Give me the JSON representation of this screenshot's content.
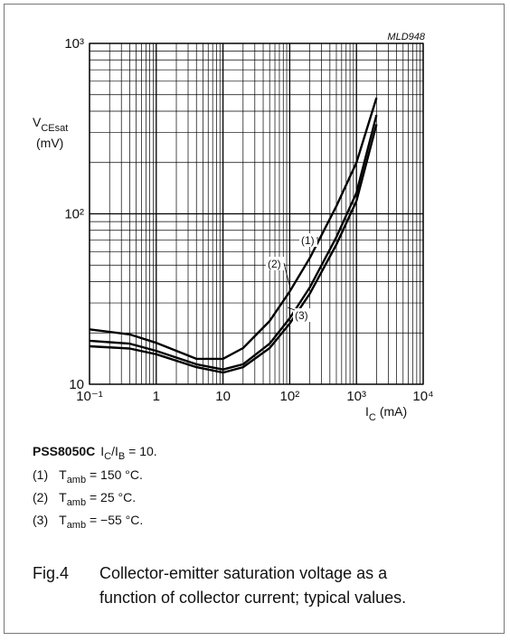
{
  "chart_data": {
    "type": "line",
    "annotation": "MLD948",
    "ylabel": {
      "symbol": "V",
      "subscript": "CEsat",
      "unit": "(mV)"
    },
    "xlabel": {
      "symbol": "I",
      "subscript": "C",
      "unit": "(mA)"
    },
    "log_x": true,
    "log_y": true,
    "grid": true,
    "xlim": [
      0.1,
      10000
    ],
    "xticks": [
      {
        "value": 0.1,
        "label": "10⁻¹"
      },
      1,
      10,
      {
        "value": 100,
        "label": "10²"
      },
      {
        "value": 1000,
        "label": "10³"
      },
      {
        "value": 10000,
        "label": "10⁴"
      }
    ],
    "ylim": [
      10,
      1000
    ],
    "yticks": [
      10,
      {
        "value": 100,
        "label": "10²"
      },
      {
        "value": 1000,
        "label": "10³"
      }
    ],
    "x": [
      0.1,
      0.4,
      1,
      4,
      10,
      20,
      50,
      100,
      200,
      500,
      1000,
      2000
    ],
    "series": [
      {
        "name": "(1)",
        "color": "#000000",
        "values": [
          21,
          19.6,
          17.5,
          14.1,
          14.1,
          16.3,
          23.5,
          35,
          55,
          111,
          200,
          480
        ]
      },
      {
        "name": "(2)",
        "color": "#000000",
        "values": [
          18,
          17.3,
          15.7,
          13.1,
          12.2,
          13.1,
          17.3,
          24.4,
          37,
          73,
          133,
          380
        ]
      },
      {
        "name": "(3)",
        "color": "#000000",
        "values": [
          16.7,
          16.2,
          15,
          12.6,
          11.7,
          12.6,
          16.3,
          22.7,
          34,
          66,
          119,
          335
        ]
      }
    ]
  },
  "notes": {
    "device": "PSS8050C",
    "condition": {
      "symbol1": "I",
      "sub1": "C",
      "symbol2": "/I",
      "sub2": "B",
      "text": " = 10."
    },
    "items": [
      {
        "num": "(1)",
        "symbol": "T",
        "sub": "amb",
        "text": " = 150 °C."
      },
      {
        "num": "(2)",
        "symbol": "T",
        "sub": "amb",
        "text": " = 25 °C."
      },
      {
        "num": "(3)",
        "symbol": "T",
        "sub": "amb",
        "text": " = −55 °C."
      }
    ]
  },
  "caption": {
    "label": "Fig.4",
    "lines": [
      "Collector-emitter saturation voltage as a",
      "function of collector current; typical values."
    ]
  }
}
